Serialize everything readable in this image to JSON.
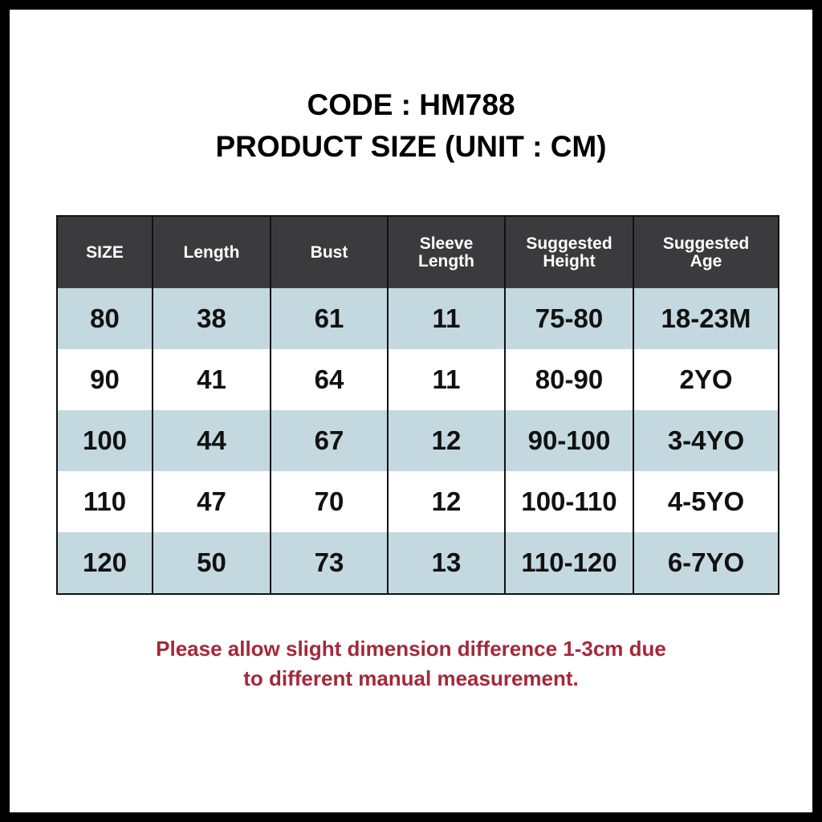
{
  "title": {
    "code": "CODE : HM788",
    "subtitle": "PRODUCT SIZE (UNIT : CM)"
  },
  "table": {
    "headers": [
      [
        "SIZE"
      ],
      [
        "Length"
      ],
      [
        "Bust"
      ],
      [
        "Sleeve",
        "Length"
      ],
      [
        "Suggested",
        "Height"
      ],
      [
        "Suggested",
        "Age"
      ]
    ],
    "rows": [
      [
        "80",
        "38",
        "61",
        "11",
        "75-80",
        "18-23M"
      ],
      [
        "90",
        "41",
        "64",
        "11",
        "80-90",
        "2YO"
      ],
      [
        "100",
        "44",
        "67",
        "12",
        "90-100",
        "3-4YO"
      ],
      [
        "110",
        "47",
        "70",
        "12",
        "100-110",
        "4-5YO"
      ],
      [
        "120",
        "50",
        "73",
        "13",
        "110-120",
        "6-7YO"
      ]
    ]
  },
  "note": {
    "line1": "Please allow slight dimension difference 1-3cm due",
    "line2": "to different manual measurement."
  },
  "colors": {
    "header_bg": "#3b3b3d",
    "row_shade": "#c4d8e0",
    "note_text": "#a3293a",
    "border": "#000000"
  }
}
